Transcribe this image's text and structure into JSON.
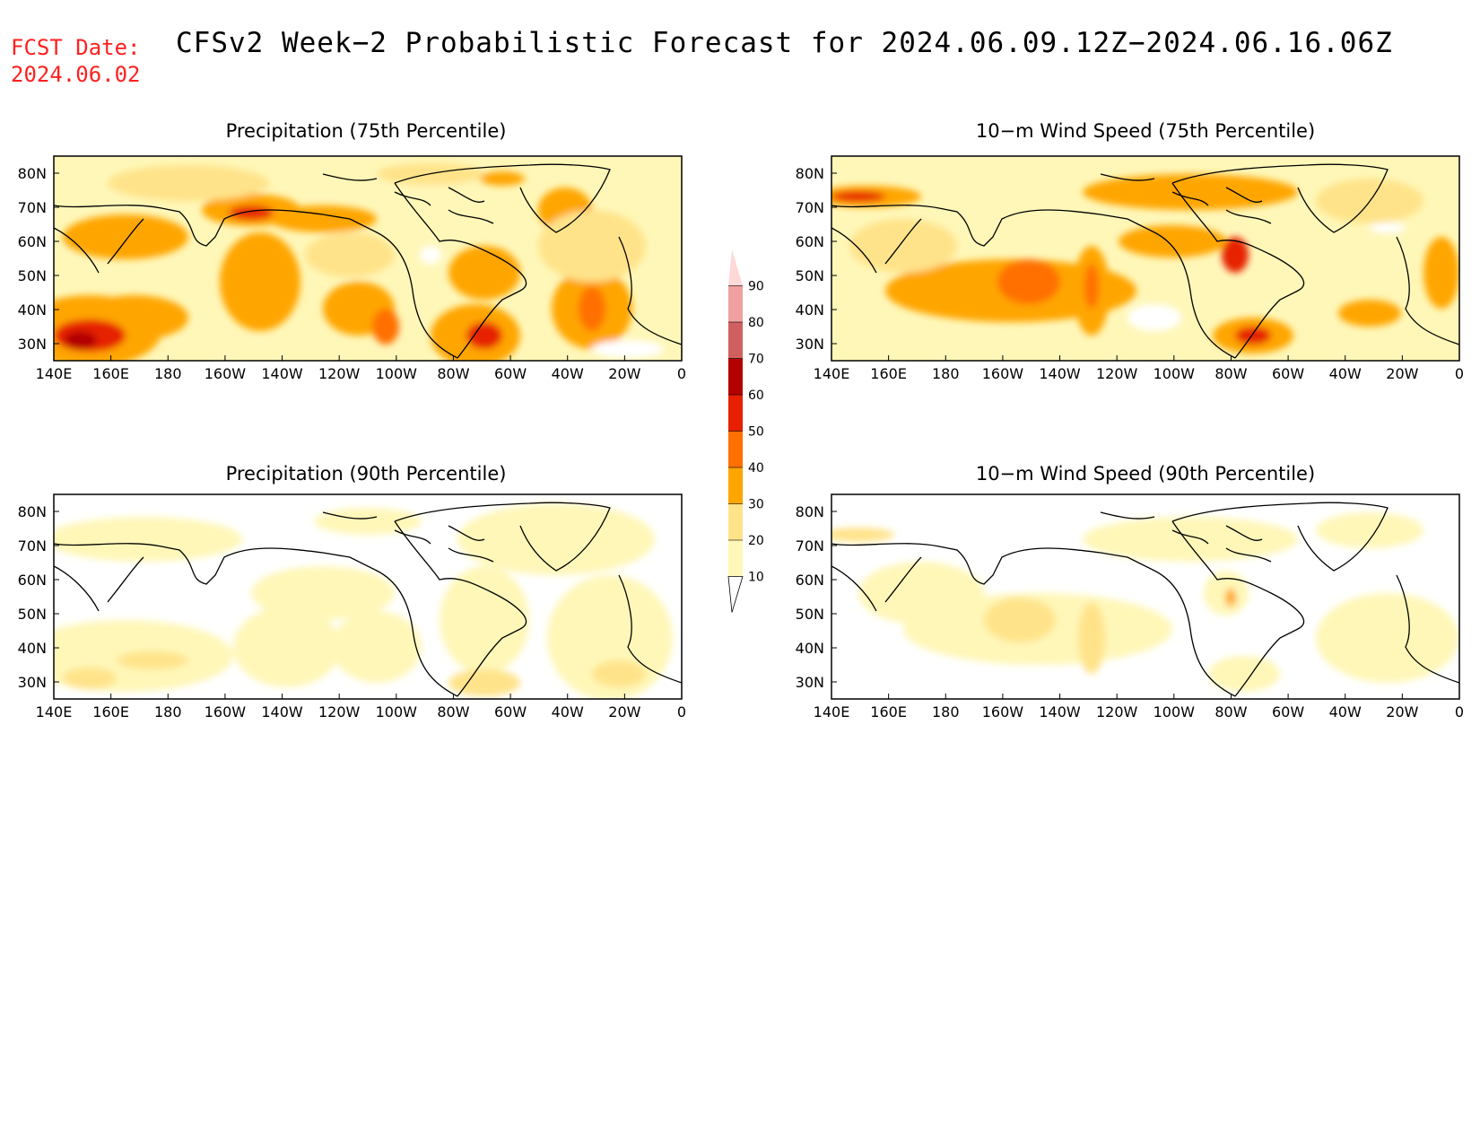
{
  "fcst": {
    "label": "FCST Date:",
    "date": "2024.06.02"
  },
  "title": "CFSv2 Week−2 Probabilistic Forecast for 2024.06.09.12Z−2024.06.16.06Z",
  "panels": [
    {
      "title": "Precipitation (75th Percentile)"
    },
    {
      "title": "10−m Wind Speed (75th Percentile)"
    },
    {
      "title": "Precipitation (90th Percentile)"
    },
    {
      "title": "10−m Wind Speed (90th Percentile)"
    }
  ],
  "lon_ticks": [
    "140E",
    "160E",
    "180",
    "160W",
    "140W",
    "120W",
    "100W",
    "80W",
    "60W",
    "40W",
    "20W",
    "0"
  ],
  "lat_ticks": [
    "80N",
    "70N",
    "60N",
    "50N",
    "40N",
    "30N"
  ],
  "colorbar": {
    "labels": [
      "10",
      "20",
      "30",
      "40",
      "50",
      "60",
      "70",
      "80",
      "90"
    ],
    "colors": [
      "#fff7b8",
      "#ffe38a",
      "#ffa500",
      "#ff7000",
      "#e62000",
      "#b30000",
      "#d06060",
      "#f0a0a0",
      "#ffd8d8"
    ]
  }
}
